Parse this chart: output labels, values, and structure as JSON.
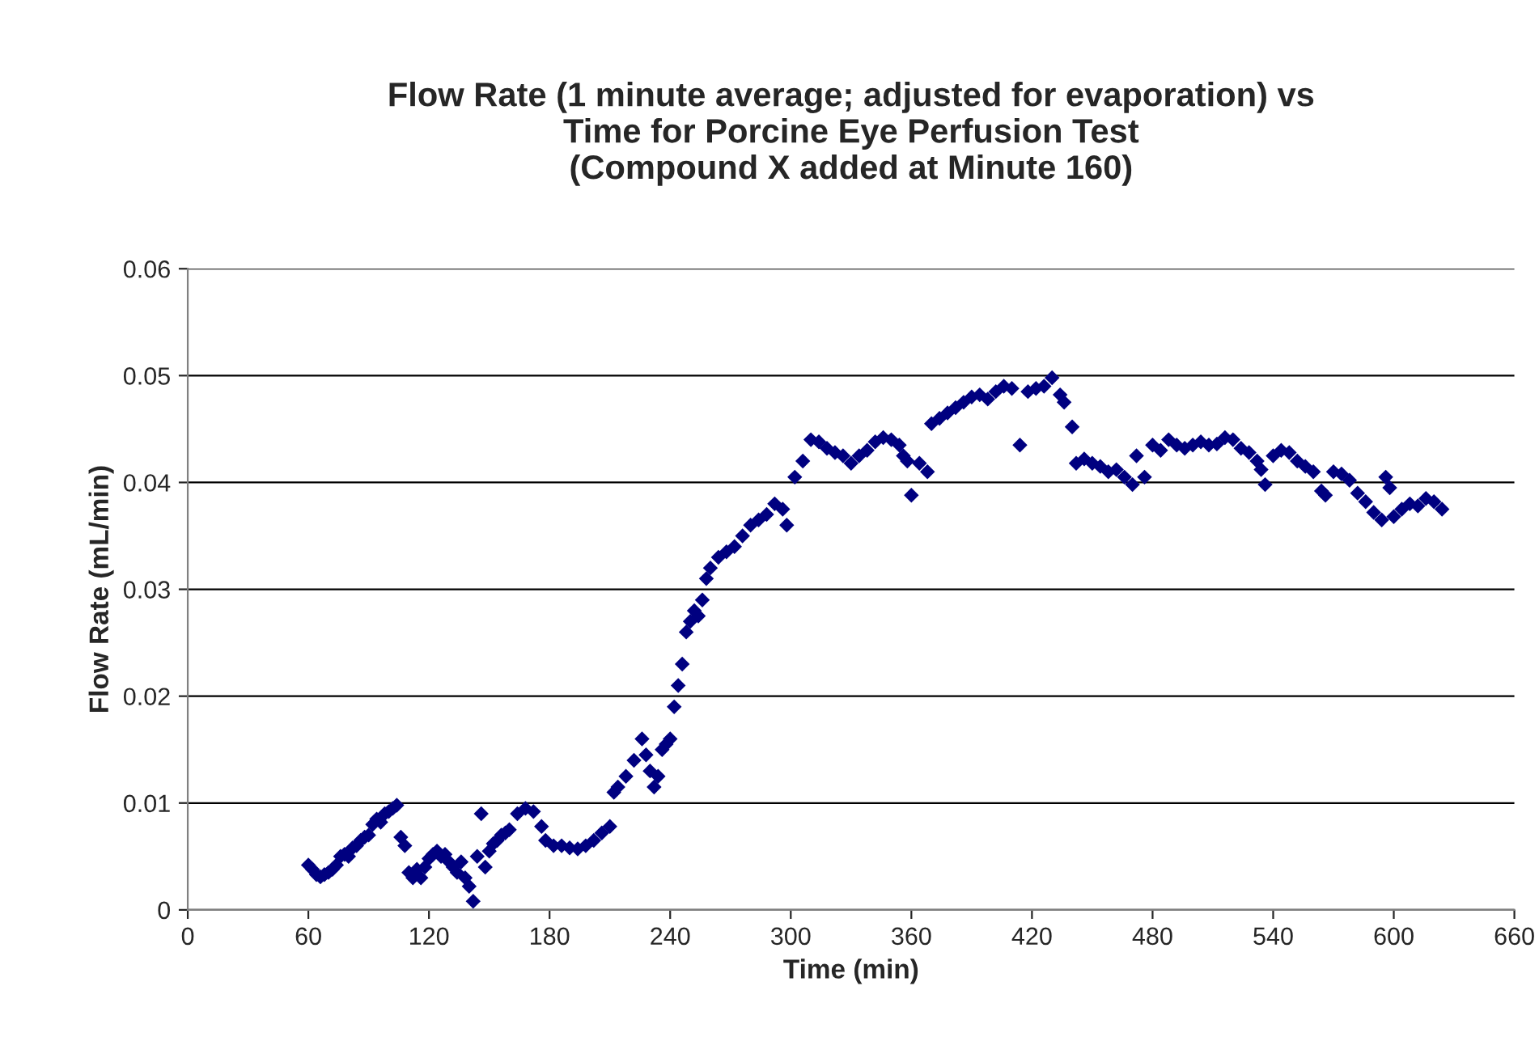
{
  "chart_data": {
    "type": "scatter",
    "title": "Flow Rate (1 minute average; adjusted for evaporation) vs\nTime for Porcine Eye Perfusion Test\n(Compound X added at Minute 160)",
    "xlabel": "Time (min)",
    "ylabel": "Flow Rate (mL/min)",
    "xlim": [
      0,
      660
    ],
    "xticks": [
      0,
      60,
      120,
      180,
      240,
      300,
      360,
      420,
      480,
      540,
      600,
      660
    ],
    "ylim": [
      0,
      0.06
    ],
    "yticks": [
      0,
      0.01,
      0.02,
      0.03,
      0.04,
      0.05,
      0.06
    ],
    "grid": "y",
    "marker": "diamond",
    "series": [
      {
        "color": "#000080",
        "x": [
          60,
          62,
          64,
          66,
          68,
          70,
          72,
          74,
          76,
          78,
          80,
          82,
          84,
          86,
          88,
          90,
          92,
          94,
          96,
          98,
          100,
          102,
          104,
          106,
          108,
          110,
          112,
          114,
          116,
          118,
          120,
          122,
          124,
          126,
          128,
          130,
          132,
          134,
          136,
          138,
          140,
          142,
          144,
          146,
          148,
          150,
          152,
          154,
          156,
          158,
          160,
          164,
          168,
          172,
          176,
          178,
          182,
          186,
          190,
          194,
          198,
          202,
          206,
          210,
          212,
          214,
          218,
          222,
          226,
          228,
          230,
          232,
          234,
          236,
          238,
          240,
          242,
          244,
          246,
          248,
          250,
          252,
          254,
          256,
          258,
          260,
          264,
          268,
          272,
          276,
          280,
          284,
          288,
          292,
          296,
          298,
          302,
          306,
          310,
          314,
          318,
          322,
          326,
          330,
          334,
          338,
          342,
          346,
          350,
          354,
          356,
          358,
          360,
          364,
          368,
          370,
          374,
          378,
          382,
          386,
          390,
          394,
          398,
          402,
          406,
          410,
          414,
          418,
          422,
          426,
          430,
          434,
          436,
          440,
          442,
          446,
          450,
          454,
          458,
          462,
          466,
          470,
          472,
          476,
          480,
          484,
          488,
          492,
          496,
          500,
          504,
          508,
          512,
          516,
          520,
          524,
          528,
          532,
          534,
          536,
          540,
          544,
          548,
          552,
          556,
          560,
          564,
          566,
          570,
          574,
          578,
          582,
          586,
          590,
          594,
          596,
          598,
          600,
          604,
          608,
          612,
          616,
          620,
          624
        ],
        "values": [
          0.0042,
          0.0038,
          0.0033,
          0.0031,
          0.0033,
          0.0035,
          0.0038,
          0.0042,
          0.005,
          0.0052,
          0.005,
          0.0058,
          0.006,
          0.0065,
          0.0068,
          0.007,
          0.008,
          0.0085,
          0.0082,
          0.009,
          0.0092,
          0.0095,
          0.0098,
          0.0068,
          0.006,
          0.0035,
          0.003,
          0.0038,
          0.003,
          0.004,
          0.0048,
          0.0052,
          0.0055,
          0.005,
          0.0052,
          0.0045,
          0.004,
          0.0035,
          0.0045,
          0.003,
          0.0022,
          0.0008,
          0.005,
          0.009,
          0.004,
          0.0055,
          0.0062,
          0.0065,
          0.007,
          0.0072,
          0.0075,
          0.009,
          0.0095,
          0.0092,
          0.0078,
          0.0065,
          0.006,
          0.006,
          0.0058,
          0.0057,
          0.006,
          0.0065,
          0.0072,
          0.0078,
          0.011,
          0.0115,
          0.0125,
          0.014,
          0.016,
          0.0145,
          0.013,
          0.0115,
          0.0125,
          0.015,
          0.0155,
          0.016,
          0.019,
          0.021,
          0.023,
          0.026,
          0.027,
          0.028,
          0.0275,
          0.029,
          0.031,
          0.032,
          0.033,
          0.0335,
          0.034,
          0.035,
          0.036,
          0.0365,
          0.037,
          0.038,
          0.0375,
          0.036,
          0.0405,
          0.042,
          0.044,
          0.0438,
          0.0432,
          0.0428,
          0.0425,
          0.0418,
          0.0425,
          0.043,
          0.0438,
          0.0442,
          0.044,
          0.0435,
          0.0425,
          0.042,
          0.0388,
          0.0418,
          0.041,
          0.0455,
          0.046,
          0.0465,
          0.047,
          0.0475,
          0.048,
          0.0482,
          0.0478,
          0.0485,
          0.049,
          0.0488,
          0.0435,
          0.0485,
          0.0488,
          0.049,
          0.0498,
          0.0482,
          0.0475,
          0.0452,
          0.0418,
          0.0422,
          0.0418,
          0.0415,
          0.041,
          0.0412,
          0.0405,
          0.0398,
          0.0425,
          0.0405,
          0.0435,
          0.043,
          0.044,
          0.0435,
          0.0432,
          0.0435,
          0.0438,
          0.0435,
          0.0436,
          0.0442,
          0.044,
          0.0432,
          0.0428,
          0.042,
          0.0412,
          0.0398,
          0.0425,
          0.043,
          0.0428,
          0.042,
          0.0415,
          0.041,
          0.0392,
          0.0388,
          0.041,
          0.0408,
          0.0402,
          0.039,
          0.0382,
          0.0372,
          0.0365,
          0.0405,
          0.0395,
          0.0368,
          0.0375,
          0.038,
          0.0378,
          0.0385,
          0.0382,
          0.0375
        ]
      }
    ]
  }
}
